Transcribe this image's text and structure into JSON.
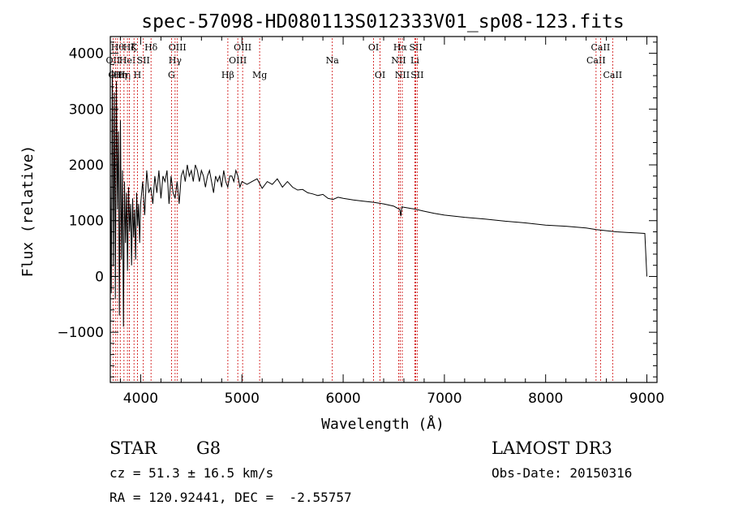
{
  "chart_data": {
    "type": "line",
    "title": "spec-57098-HD080113S012333V01_sp08-123.fits",
    "xlabel": "Wavelength (Å)",
    "ylabel": "Flux (relative)",
    "xlim": [
      3700,
      9100
    ],
    "ylim": [
      -1900,
      4300
    ],
    "xticks": [
      4000,
      5000,
      6000,
      7000,
      8000,
      9000
    ],
    "xtick_labels": [
      "4000",
      "5000",
      "6000",
      "7000",
      "8000",
      "9000"
    ],
    "yticks": [
      -1000,
      0,
      1000,
      2000,
      3000,
      4000
    ],
    "ytick_labels": [
      "−1000",
      "0",
      "1000",
      "2000",
      "3000",
      "4000"
    ],
    "series": [
      {
        "name": "flux",
        "x": [
          3700,
          3710,
          3720,
          3730,
          3740,
          3750,
          3760,
          3770,
          3780,
          3790,
          3800,
          3810,
          3820,
          3830,
          3840,
          3850,
          3860,
          3870,
          3880,
          3890,
          3900,
          3910,
          3920,
          3930,
          3940,
          3950,
          3960,
          3970,
          3980,
          3990,
          4000,
          4020,
          4040,
          4060,
          4080,
          4100,
          4120,
          4140,
          4160,
          4180,
          4200,
          4220,
          4240,
          4260,
          4280,
          4300,
          4320,
          4340,
          4360,
          4380,
          4400,
          4420,
          4440,
          4460,
          4480,
          4500,
          4520,
          4540,
          4560,
          4580,
          4600,
          4620,
          4640,
          4660,
          4680,
          4700,
          4720,
          4740,
          4760,
          4780,
          4800,
          4820,
          4840,
          4860,
          4880,
          4900,
          4920,
          4940,
          4960,
          4980,
          5000,
          5050,
          5100,
          5150,
          5200,
          5250,
          5300,
          5350,
          5400,
          5450,
          5500,
          5550,
          5600,
          5650,
          5700,
          5750,
          5800,
          5850,
          5900,
          5950,
          6000,
          6100,
          6200,
          6300,
          6400,
          6500,
          6560,
          6570,
          6580,
          6600,
          6700,
          6800,
          6900,
          7000,
          7200,
          7400,
          7600,
          7800,
          8000,
          8200,
          8400,
          8500,
          8600,
          8700,
          8800,
          8900,
          8980,
          9000
        ],
        "values": [
          1800,
          -300,
          3700,
          200,
          3300,
          -400,
          3500,
          1200,
          2600,
          -700,
          2800,
          300,
          1900,
          -900,
          1700,
          600,
          1500,
          100,
          1600,
          800,
          1300,
          200,
          1400,
          700,
          1200,
          300,
          1500,
          900,
          1300,
          600,
          1300,
          1700,
          1100,
          1900,
          1500,
          1600,
          1300,
          1800,
          1500,
          1900,
          1400,
          1800,
          1700,
          1900,
          1300,
          1800,
          1500,
          1400,
          1700,
          1300,
          1800,
          1900,
          1700,
          2000,
          1800,
          1900,
          1700,
          2000,
          1900,
          1700,
          1900,
          1800,
          1600,
          1800,
          1900,
          1700,
          1500,
          1800,
          1700,
          1800,
          1600,
          1900,
          1700,
          1600,
          1800,
          1800,
          1700,
          1900,
          1800,
          1600,
          1700,
          1650,
          1700,
          1750,
          1580,
          1700,
          1650,
          1750,
          1600,
          1700,
          1600,
          1550,
          1560,
          1500,
          1480,
          1450,
          1470,
          1400,
          1380,
          1420,
          1400,
          1370,
          1350,
          1330,
          1300,
          1260,
          1200,
          1080,
          1250,
          1240,
          1210,
          1170,
          1130,
          1100,
          1060,
          1030,
          990,
          960,
          920,
          900,
          870,
          840,
          820,
          800,
          790,
          780,
          770,
          0
        ]
      }
    ],
    "line_labels": [
      {
        "wavelength": 3727,
        "label": "OII",
        "row": 2
      },
      {
        "wavelength": 3750,
        "label": "OII",
        "row": 3
      },
      {
        "wavelength": 3771,
        "label": "Hθ",
        "row": 1
      },
      {
        "wavelength": 3798,
        "label": "Hη",
        "row": 3
      },
      {
        "wavelength": 3835,
        "label": "Hη",
        "row": 3
      },
      {
        "wavelength": 3869,
        "label": "HeI",
        "row": 2
      },
      {
        "wavelength": 3889,
        "label": "Hζ",
        "row": 1
      },
      {
        "wavelength": 3934,
        "label": "K",
        "row": 1
      },
      {
        "wavelength": 3968,
        "label": "H",
        "row": 3
      },
      {
        "wavelength": 4026,
        "label": "SII",
        "row": 2
      },
      {
        "wavelength": 4102,
        "label": "Hδ",
        "row": 1
      },
      {
        "wavelength": 4304,
        "label": "G",
        "row": 3
      },
      {
        "wavelength": 4340,
        "label": "Hγ",
        "row": 2
      },
      {
        "wavelength": 4363,
        "label": "OIII",
        "row": 1
      },
      {
        "wavelength": 4861,
        "label": "Hβ",
        "row": 3
      },
      {
        "wavelength": 4959,
        "label": "OIII",
        "row": 2
      },
      {
        "wavelength": 5007,
        "label": "OIII",
        "row": 1
      },
      {
        "wavelength": 5175,
        "label": "Mg",
        "row": 3
      },
      {
        "wavelength": 5893,
        "label": "Na",
        "row": 2
      },
      {
        "wavelength": 6300,
        "label": "OI",
        "row": 1
      },
      {
        "wavelength": 6364,
        "label": "OI",
        "row": 3
      },
      {
        "wavelength": 6548,
        "label": "NII",
        "row": 2
      },
      {
        "wavelength": 6563,
        "label": "Hα",
        "row": 1
      },
      {
        "wavelength": 6584,
        "label": "NII",
        "row": 3
      },
      {
        "wavelength": 6708,
        "label": "Li",
        "row": 2
      },
      {
        "wavelength": 6717,
        "label": "SII",
        "row": 1
      },
      {
        "wavelength": 6731,
        "label": "SII",
        "row": 3
      },
      {
        "wavelength": 8498,
        "label": "CaII",
        "row": 2
      },
      {
        "wavelength": 8542,
        "label": "CaII",
        "row": 1
      },
      {
        "wavelength": 8662,
        "label": "CaII",
        "row": 3
      }
    ],
    "grid": false,
    "legend": "none"
  },
  "info": {
    "object_class": "STAR",
    "subclass": "G8",
    "survey": "LAMOST DR3",
    "cz": "cz = 51.3 ± 16.5 km/s",
    "obs_date": "Obs-Date: 20150316",
    "coords": "RA = 120.92441, DEC =  -2.55757"
  },
  "colors": {
    "line": "#000000",
    "marker": "#cc0000",
    "axis": "#000000"
  }
}
